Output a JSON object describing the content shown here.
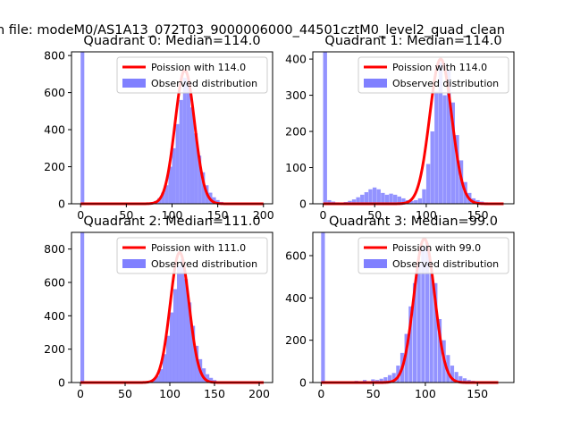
{
  "figure": {
    "suptitle": "n file: modeM0/AS1A13_072T03_9000006000_44501cztM0_level2_quad_clean"
  },
  "colors": {
    "poisson_line": "#ff0000",
    "histogram": "#8080ff"
  },
  "chart_data": [
    {
      "type": "bar",
      "title": "Quadrant 0: Median=114.0",
      "xlabel": "",
      "ylabel": "",
      "xlim": [
        -10,
        210
      ],
      "ylim": [
        0,
        820
      ],
      "xticks": [
        0,
        50,
        100,
        150,
        200
      ],
      "yticks": [
        0,
        200,
        400,
        600,
        800
      ],
      "legend": {
        "placement": "top-right",
        "entries": [
          "Poission with 114.0",
          "Observed distribution"
        ]
      },
      "series": [
        {
          "name": "Observed distribution",
          "kind": "histogram",
          "bin_width": 4,
          "bins": [
            [
              0,
              820
            ],
            [
              68,
              2
            ],
            [
              72,
              4
            ],
            [
              76,
              8
            ],
            [
              80,
              15
            ],
            [
              84,
              30
            ],
            [
              88,
              60
            ],
            [
              92,
              100
            ],
            [
              96,
              200
            ],
            [
              100,
              300
            ],
            [
              104,
              430
            ],
            [
              108,
              560
            ],
            [
              112,
              680
            ],
            [
              116,
              640
            ],
            [
              120,
              520
            ],
            [
              124,
              380
            ],
            [
              128,
              260
            ],
            [
              132,
              170
            ],
            [
              136,
              100
            ],
            [
              140,
              60
            ],
            [
              144,
              35
            ],
            [
              148,
              20
            ],
            [
              152,
              10
            ],
            [
              156,
              5
            ],
            [
              160,
              2
            ]
          ]
        },
        {
          "name": "Poission with 114.0",
          "kind": "poisson",
          "mu": 114.0,
          "peak": 720,
          "x_range": [
            0,
            200
          ]
        }
      ]
    },
    {
      "type": "bar",
      "title": "Quadrant 1: Median=114.0",
      "xlabel": "",
      "ylabel": "",
      "xlim": [
        -10,
        185
      ],
      "ylim": [
        0,
        420
      ],
      "xticks": [
        0,
        50,
        100,
        150
      ],
      "yticks": [
        0,
        100,
        200,
        300,
        400
      ],
      "legend": {
        "placement": "top-right",
        "entries": [
          "Poission with 114.0",
          "Observed distribution"
        ]
      },
      "series": [
        {
          "name": "Observed distribution",
          "kind": "histogram",
          "bin_width": 3.8,
          "bins": [
            [
              0,
              420
            ],
            [
              4,
              10
            ],
            [
              8,
              6
            ],
            [
              12,
              4
            ],
            [
              16,
              3
            ],
            [
              20,
              5
            ],
            [
              24,
              8
            ],
            [
              28,
              12
            ],
            [
              32,
              18
            ],
            [
              36,
              25
            ],
            [
              40,
              32
            ],
            [
              44,
              40
            ],
            [
              48,
              45
            ],
            [
              52,
              40
            ],
            [
              56,
              30
            ],
            [
              60,
              25
            ],
            [
              64,
              28
            ],
            [
              68,
              25
            ],
            [
              72,
              20
            ],
            [
              76,
              15
            ],
            [
              80,
              10
            ],
            [
              84,
              8
            ],
            [
              88,
              10
            ],
            [
              92,
              15
            ],
            [
              96,
              40
            ],
            [
              100,
              110
            ],
            [
              104,
              200
            ],
            [
              108,
              310
            ],
            [
              112,
              390
            ],
            [
              116,
              300
            ],
            [
              120,
              370
            ],
            [
              124,
              280
            ],
            [
              128,
              190
            ],
            [
              132,
              120
            ],
            [
              136,
              60
            ],
            [
              140,
              30
            ],
            [
              144,
              15
            ],
            [
              148,
              10
            ],
            [
              152,
              6
            ],
            [
              156,
              4
            ],
            [
              160,
              3
            ],
            [
              164,
              2
            ]
          ]
        },
        {
          "name": "Poission with 114.0",
          "kind": "poisson",
          "mu": 114.0,
          "peak": 400,
          "x_range": [
            0,
            175
          ]
        }
      ]
    },
    {
      "type": "bar",
      "title": "Quadrant 2: Median=111.0",
      "xlabel": "",
      "ylabel": "",
      "xlim": [
        -10,
        215
      ],
      "ylim": [
        0,
        900
      ],
      "xticks": [
        0,
        50,
        100,
        150,
        200
      ],
      "yticks": [
        0,
        200,
        400,
        600,
        800
      ],
      "legend": {
        "placement": "top-right",
        "entries": [
          "Poission with 111.0",
          "Observed distribution"
        ]
      },
      "series": [
        {
          "name": "Observed distribution",
          "kind": "histogram",
          "bin_width": 4.2,
          "bins": [
            [
              0,
              900
            ],
            [
              68,
              2
            ],
            [
              72,
              5
            ],
            [
              76,
              10
            ],
            [
              80,
              20
            ],
            [
              84,
              40
            ],
            [
              88,
              80
            ],
            [
              92,
              170
            ],
            [
              96,
              280
            ],
            [
              100,
              420
            ],
            [
              104,
              560
            ],
            [
              108,
              700
            ],
            [
              112,
              740
            ],
            [
              116,
              620
            ],
            [
              120,
              480
            ],
            [
              124,
              340
            ],
            [
              128,
              220
            ],
            [
              132,
              140
            ],
            [
              136,
              85
            ],
            [
              140,
              50
            ],
            [
              144,
              28
            ],
            [
              148,
              15
            ],
            [
              152,
              8
            ],
            [
              156,
              4
            ],
            [
              160,
              2
            ]
          ]
        },
        {
          "name": "Poission with 111.0",
          "kind": "poisson",
          "mu": 111.0,
          "peak": 780,
          "x_range": [
            0,
            205
          ]
        }
      ]
    },
    {
      "type": "bar",
      "title": "Quadrant 3: Median=99.0",
      "xlabel": "",
      "ylabel": "",
      "xlim": [
        -8,
        185
      ],
      "ylim": [
        0,
        710
      ],
      "xticks": [
        0,
        50,
        100,
        150
      ],
      "yticks": [
        0,
        200,
        400,
        600
      ],
      "legend": {
        "placement": "top-right",
        "entries": [
          "Poission with 99.0",
          "Observed distribution"
        ]
      },
      "series": [
        {
          "name": "Observed distribution",
          "kind": "histogram",
          "bin_width": 3.6,
          "bins": [
            [
              0,
              710
            ],
            [
              16,
              3
            ],
            [
              24,
              5
            ],
            [
              32,
              8
            ],
            [
              40,
              12
            ],
            [
              48,
              15
            ],
            [
              52,
              12
            ],
            [
              56,
              18
            ],
            [
              60,
              25
            ],
            [
              64,
              35
            ],
            [
              68,
              45
            ],
            [
              72,
              80
            ],
            [
              76,
              140
            ],
            [
              80,
              230
            ],
            [
              84,
              360
            ],
            [
              88,
              470
            ],
            [
              92,
              560
            ],
            [
              96,
              640
            ],
            [
              100,
              660
            ],
            [
              104,
              520
            ],
            [
              108,
              470
            ],
            [
              112,
              300
            ],
            [
              116,
              200
            ],
            [
              120,
              130
            ],
            [
              124,
              80
            ],
            [
              128,
              50
            ],
            [
              132,
              30
            ],
            [
              136,
              20
            ],
            [
              140,
              12
            ],
            [
              144,
              8
            ],
            [
              148,
              5
            ],
            [
              152,
              3
            ],
            [
              156,
              2
            ]
          ]
        },
        {
          "name": "Poission with 99.0",
          "kind": "poisson",
          "mu": 99.0,
          "peak": 680,
          "x_range": [
            0,
            170
          ]
        }
      ]
    }
  ]
}
